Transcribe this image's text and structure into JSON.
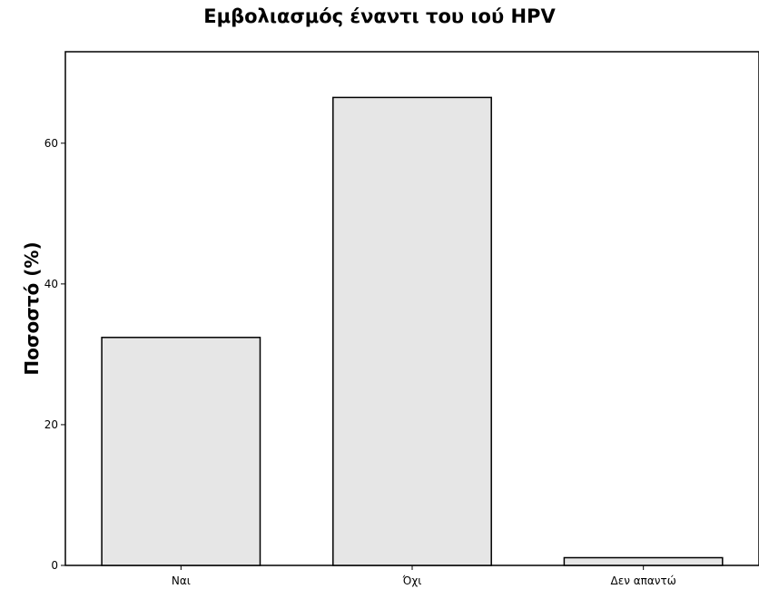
{
  "chart_data": {
    "type": "bar",
    "title": "Εμβολιασμός έναντι του ιού HPV",
    "xlabel": "",
    "ylabel": "Ποσοστό (%)",
    "categories": [
      "Ναι",
      "Όχι",
      "Δεν απαντώ"
    ],
    "values": [
      32.4,
      66.5,
      1.1
    ],
    "ylim": [
      0,
      73
    ],
    "yticks": [
      0,
      20,
      40,
      60
    ],
    "ytick_labels": [
      "0",
      "20",
      "40",
      "60"
    ],
    "grid": false,
    "bar_color": "#e6e6e6",
    "bar_edge_color": "#000000"
  }
}
